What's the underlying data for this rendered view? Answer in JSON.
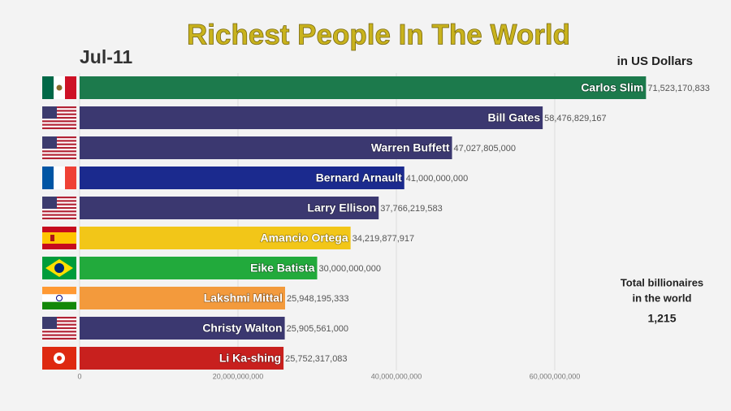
{
  "chart_data": {
    "type": "hbar",
    "title": "Richest People In The World",
    "date": "Jul-11",
    "unit_label": "in US Dollars",
    "annotation": "Total billionaires",
    "annotation_2": "in the world",
    "total_billionaires": {
      "value": 1215,
      "label": "1,215"
    },
    "categories": [
      "Carlos Slim",
      "Bill Gates",
      "Warren Buffett",
      "Bernard Arnault",
      "Larry Ellison",
      "Amancio Ortega",
      "Eike Batista",
      "Lakshmi Mittal",
      "Christy Walton",
      "Li Ka-shing"
    ],
    "values": [
      71523170833,
      58476829167,
      47027805000,
      41000000000,
      37766219583,
      34219877917,
      30000000000,
      25948195333,
      25905561000,
      25752317083
    ],
    "value_labels": [
      "71,523,170,833",
      "58,476,829,167",
      "47,027,805,000",
      "41,000,000,000",
      "37,766,219,583",
      "34,219,877,917",
      "30,000,000,000",
      "25,948,195,333",
      "25,905,561,000",
      "25,752,317,083"
    ],
    "colors": [
      "#1c7a4c",
      "#3b3870",
      "#3b3870",
      "#1b2a8e",
      "#3b3870",
      "#f2c618",
      "#22aa3c",
      "#f39a3c",
      "#3b3870",
      "#c8201e"
    ],
    "xlim": [
      0,
      80000000000
    ],
    "xticks": [
      0,
      {
        "value": 20000000000,
        "label": "20,000,000,000"
      },
      {
        "value": 40000000000,
        "label": "40,000,000,000"
      },
      {
        "value": 60000000000,
        "label": "60,000,000,000"
      }
    ],
    "grid": true
  }
}
